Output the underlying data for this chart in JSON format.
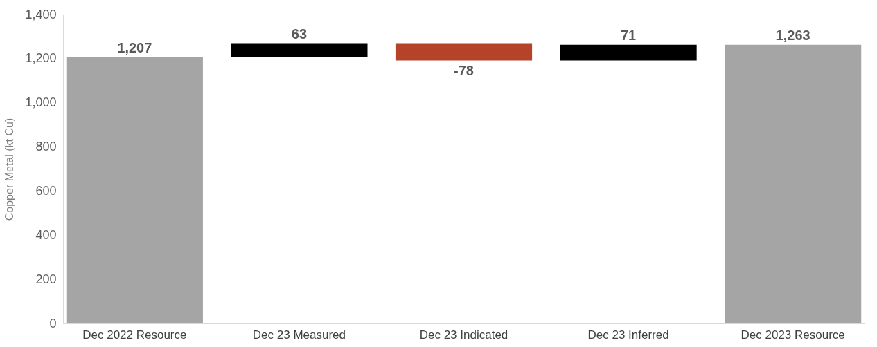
{
  "chart_data": {
    "type": "bar",
    "ylabel": "Copper Metal  (kt Cu)",
    "categories": [
      "Dec 2022 Resource",
      "Dec 23 Measured",
      "Dec 23 Indicated",
      "Dec 23 Inferred",
      "Dec 2023 Resource"
    ],
    "values": [
      1207,
      63,
      -78,
      71,
      1263
    ],
    "base": [
      0,
      1207,
      1270,
      1192,
      0
    ],
    "colors": [
      "#a5a5a5",
      "#000000",
      "#b5432a",
      "#000000",
      "#a5a5a5"
    ],
    "value_labels": [
      "1,207",
      "63",
      "-78",
      "71",
      "1,263"
    ],
    "ylim": [
      0,
      1400
    ],
    "yticks": [
      0,
      200,
      400,
      600,
      800,
      {
        "value": 1000,
        "label": "1,000"
      },
      {
        "value": 1200,
        "label": "1,200"
      },
      {
        "value": 1400,
        "label": "1,400"
      }
    ],
    "grid": false
  }
}
